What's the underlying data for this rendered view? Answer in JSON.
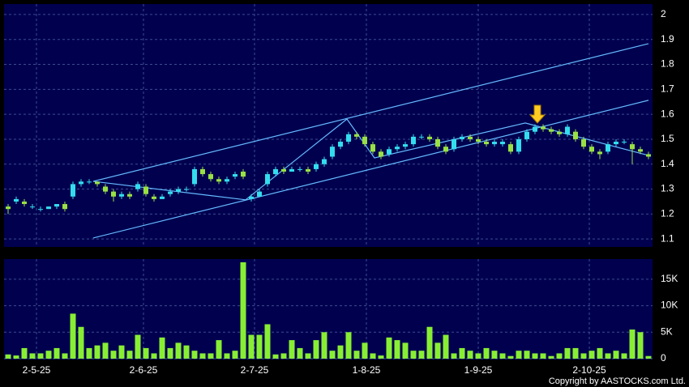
{
  "chart_data": {
    "type": "candlestick",
    "copyright": "Copyright by AASTOCKS.com Ltd.",
    "up_color": "#33ddee",
    "down_color": "#99e044",
    "volume_color": "#88ee33",
    "line_color": "#66bbff",
    "xlim": [
      0,
      80
    ],
    "xticks": [
      {
        "value": 4,
        "label": "2-5-25"
      },
      {
        "value": 17.2,
        "label": "2-6-25"
      },
      {
        "value": 30.9,
        "label": "2-7-25"
      },
      {
        "value": 44.7,
        "label": "1-8-25"
      },
      {
        "value": 58.5,
        "label": "1-9-25"
      },
      {
        "value": 72.2,
        "label": "2-10-25"
      }
    ],
    "ylim": [
      1.068,
      2.042
    ],
    "yticks": [
      1.1,
      1.2,
      1.3,
      1.4,
      1.5,
      1.6,
      1.7,
      1.8,
      1.9,
      2
    ],
    "vlim": [
      0,
      18800
    ],
    "vticks": [
      0,
      {
        "value": 5000,
        "label": "5K"
      },
      {
        "value": 10000,
        "label": "10K"
      },
      {
        "value": 15000,
        "label": "15K"
      }
    ],
    "grid": true,
    "ohlc": [
      [
        1.23,
        1.24,
        1.2,
        1.22
      ],
      [
        1.25,
        1.27,
        1.24,
        1.26
      ],
      [
        1.25,
        1.26,
        1.23,
        1.24
      ],
      [
        1.23,
        1.24,
        1.22,
        1.23
      ],
      [
        1.22,
        1.23,
        1.21,
        1.22
      ],
      [
        1.22,
        1.23,
        1.22,
        1.23
      ],
      [
        1.23,
        1.24,
        1.22,
        1.24
      ],
      [
        1.24,
        1.25,
        1.21,
        1.22
      ],
      [
        1.27,
        1.33,
        1.26,
        1.32
      ],
      [
        1.32,
        1.34,
        1.31,
        1.33
      ],
      [
        1.33,
        1.34,
        1.32,
        1.33
      ],
      [
        1.33,
        1.33,
        1.31,
        1.32
      ],
      [
        1.31,
        1.32,
        1.28,
        1.29
      ],
      [
        1.29,
        1.3,
        1.25,
        1.27
      ],
      [
        1.27,
        1.29,
        1.26,
        1.28
      ],
      [
        1.28,
        1.29,
        1.26,
        1.27
      ],
      [
        1.3,
        1.33,
        1.29,
        1.32
      ],
      [
        1.31,
        1.32,
        1.27,
        1.28
      ],
      [
        1.27,
        1.28,
        1.25,
        1.26
      ],
      [
        1.26,
        1.28,
        1.26,
        1.27
      ],
      [
        1.28,
        1.3,
        1.27,
        1.29
      ],
      [
        1.29,
        1.31,
        1.28,
        1.3
      ],
      [
        1.3,
        1.31,
        1.29,
        1.3
      ],
      [
        1.32,
        1.39,
        1.31,
        1.38
      ],
      [
        1.38,
        1.39,
        1.35,
        1.36
      ],
      [
        1.36,
        1.37,
        1.33,
        1.34
      ],
      [
        1.34,
        1.35,
        1.32,
        1.33
      ],
      [
        1.33,
        1.35,
        1.32,
        1.34
      ],
      [
        1.35,
        1.37,
        1.34,
        1.36
      ],
      [
        1.37,
        1.38,
        1.34,
        1.35
      ],
      [
        1.26,
        1.28,
        1.25,
        1.27
      ],
      [
        1.27,
        1.3,
        1.27,
        1.29
      ],
      [
        1.32,
        1.37,
        1.31,
        1.36
      ],
      [
        1.36,
        1.39,
        1.35,
        1.38
      ],
      [
        1.38,
        1.39,
        1.36,
        1.37
      ],
      [
        1.37,
        1.39,
        1.37,
        1.38
      ],
      [
        1.38,
        1.39,
        1.37,
        1.38
      ],
      [
        1.38,
        1.39,
        1.36,
        1.37
      ],
      [
        1.38,
        1.41,
        1.37,
        1.4
      ],
      [
        1.4,
        1.43,
        1.39,
        1.42
      ],
      [
        1.43,
        1.48,
        1.42,
        1.47
      ],
      [
        1.47,
        1.5,
        1.46,
        1.49
      ],
      [
        1.49,
        1.53,
        1.48,
        1.52
      ],
      [
        1.52,
        1.53,
        1.5,
        1.51
      ],
      [
        1.51,
        1.52,
        1.47,
        1.48
      ],
      [
        1.48,
        1.49,
        1.44,
        1.45
      ],
      [
        1.45,
        1.46,
        1.42,
        1.43
      ],
      [
        1.44,
        1.47,
        1.43,
        1.46
      ],
      [
        1.46,
        1.48,
        1.45,
        1.47
      ],
      [
        1.47,
        1.49,
        1.46,
        1.48
      ],
      [
        1.48,
        1.52,
        1.47,
        1.51
      ],
      [
        1.51,
        1.52,
        1.5,
        1.51
      ],
      [
        1.51,
        1.52,
        1.49,
        1.5
      ],
      [
        1.5,
        1.51,
        1.46,
        1.47
      ],
      [
        1.47,
        1.48,
        1.44,
        1.45
      ],
      [
        1.46,
        1.51,
        1.45,
        1.5
      ],
      [
        1.5,
        1.52,
        1.49,
        1.51
      ],
      [
        1.51,
        1.52,
        1.49,
        1.5
      ],
      [
        1.5,
        1.51,
        1.48,
        1.49
      ],
      [
        1.49,
        1.5,
        1.47,
        1.48
      ],
      [
        1.48,
        1.5,
        1.47,
        1.49
      ],
      [
        1.48,
        1.5,
        1.47,
        1.49
      ],
      [
        1.48,
        1.49,
        1.44,
        1.45
      ],
      [
        1.45,
        1.51,
        1.44,
        1.5
      ],
      [
        1.5,
        1.54,
        1.49,
        1.53
      ],
      [
        1.53,
        1.56,
        1.52,
        1.55
      ],
      [
        1.55,
        1.56,
        1.53,
        1.54
      ],
      [
        1.54,
        1.55,
        1.52,
        1.53
      ],
      [
        1.53,
        1.54,
        1.51,
        1.52
      ],
      [
        1.52,
        1.56,
        1.51,
        1.55
      ],
      [
        1.53,
        1.54,
        1.49,
        1.5
      ],
      [
        1.5,
        1.51,
        1.46,
        1.47
      ],
      [
        1.47,
        1.48,
        1.44,
        1.45
      ],
      [
        1.45,
        1.46,
        1.42,
        1.44
      ],
      [
        1.45,
        1.49,
        1.44,
        1.48
      ],
      [
        1.48,
        1.5,
        1.47,
        1.49
      ],
      [
        1.49,
        1.5,
        1.48,
        1.49
      ],
      [
        1.48,
        1.49,
        1.4,
        1.46
      ],
      [
        1.46,
        1.47,
        1.44,
        1.45
      ],
      [
        1.44,
        1.45,
        1.42,
        1.43
      ]
    ],
    "volume": [
      800,
      600,
      2000,
      1000,
      1000,
      1500,
      2000,
      1000,
      8500,
      6000,
      2000,
      2500,
      3000,
      1500,
      2500,
      1500,
      4500,
      2000,
      1000,
      4000,
      2000,
      3000,
      2500,
      1500,
      1000,
      1000,
      3500,
      1000,
      1500,
      18200,
      4500,
      4500,
      6500,
      800,
      1000,
      3500,
      2000,
      1000,
      3500,
      5000,
      1500,
      2500,
      5000,
      1500,
      3000,
      1000,
      600,
      4000,
      3500,
      3000,
      1500,
      1500,
      6000,
      3000,
      4500,
      1000,
      2000,
      1500,
      1000,
      2000,
      1500,
      1000,
      500,
      1500,
      1500,
      1000,
      1000,
      500,
      1000,
      2000,
      2000,
      1000,
      1500,
      2000,
      1000,
      1500,
      1000,
      5500,
      5000,
      500
    ],
    "trendlines": [
      {
        "x": [
          11,
          79.5
        ],
        "y": [
          1.331,
          1.883
        ]
      },
      {
        "x": [
          11,
          79.5
        ],
        "y": [
          1.104,
          1.656
        ]
      },
      {
        "x": [
          11,
          29.8,
          42.3,
          45.7,
          64.3,
          79.5
        ],
        "y": [
          1.331,
          1.257,
          1.581,
          1.425,
          1.565,
          1.435
        ]
      }
    ]
  }
}
